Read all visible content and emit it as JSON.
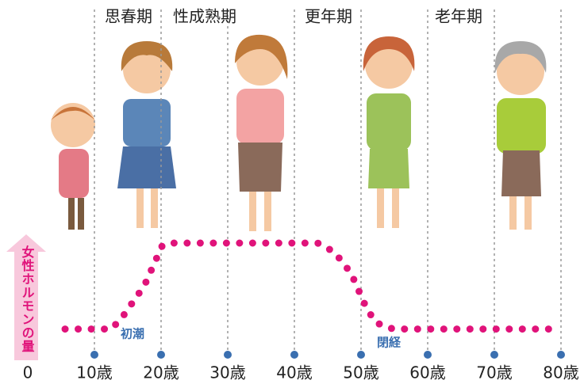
{
  "chart_data": {
    "type": "line",
    "y_label": "女性ホルモンの量",
    "stages": [
      "思春期",
      "性成熟期",
      "更年期",
      "老年期"
    ],
    "annotations": [
      "初潮",
      "閉経"
    ],
    "x": [
      5.6,
      12.5,
      14,
      17.5,
      20.2,
      21.5,
      43.5,
      46,
      48.5,
      50.5,
      52,
      53.5,
      55,
      80
    ],
    "values": [
      23,
      23,
      32,
      62,
      98,
      100,
      100,
      92,
      73,
      46,
      30,
      25,
      23,
      23
    ],
    "color": "#e0137a",
    "xlim": [
      0,
      80
    ],
    "ylim": [
      0,
      100
    ],
    "xticks": [
      0,
      {
        "value": 10,
        "label": "10歳"
      },
      {
        "value": 20,
        "label": "20歳"
      },
      {
        "value": 30,
        "label": "30歳"
      },
      {
        "value": 40,
        "label": "40歳"
      },
      {
        "value": 50,
        "label": "50歳"
      },
      {
        "value": 60,
        "label": "60歳"
      },
      {
        "value": 70,
        "label": "70歳"
      },
      {
        "value": 80,
        "label": "80歳"
      }
    ],
    "tick_color": "#3a6fb0",
    "grid": true
  }
}
